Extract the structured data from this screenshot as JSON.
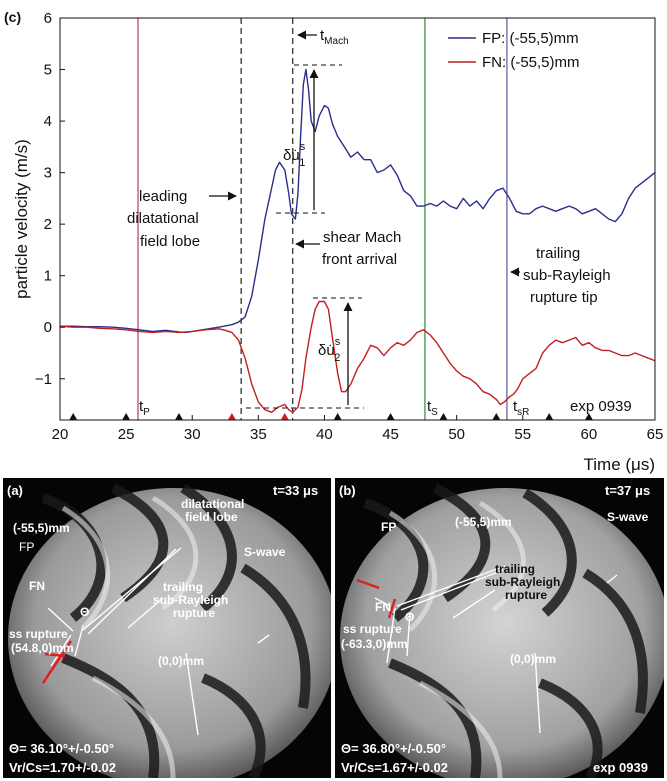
{
  "chart_data": {
    "type": "line",
    "panel_label": "(c)",
    "xlabel": "Time (μs)",
    "ylabel": "particle velocity (m/s)",
    "xlim": [
      20,
      65
    ],
    "ylim": [
      -1.8,
      6
    ],
    "xticks": [
      20,
      25,
      30,
      35,
      40,
      45,
      50,
      55,
      60,
      65
    ],
    "yticks": [
      -1,
      0,
      1,
      2,
      3,
      4,
      5,
      6
    ],
    "ytick_labels": [
      "−1",
      "0",
      "1",
      "2",
      "3",
      "4",
      "5",
      "6"
    ],
    "legend_position": "top-right",
    "series": [
      {
        "name": "FP: (-55,5)mm",
        "color": "#2b2f8c",
        "x": [
          20,
          21,
          22,
          23,
          24,
          25,
          26,
          27,
          28,
          29,
          29.5,
          30,
          31,
          32,
          33,
          33.5,
          34,
          34.5,
          35,
          35.5,
          36,
          36.3,
          36.6,
          37,
          37.3,
          37.5,
          37.8,
          38,
          38.2,
          38.4,
          38.6,
          38.8,
          39,
          39.3,
          39.6,
          40,
          40.3,
          40.6,
          41,
          41.5,
          42,
          42.5,
          43,
          43.5,
          44,
          44.5,
          45,
          45.5,
          46,
          46.5,
          47,
          47.5,
          48,
          48.5,
          49,
          49.5,
          50,
          50.5,
          51,
          51.5,
          52,
          52.5,
          53,
          53.5,
          54,
          54.5,
          55,
          55.5,
          56,
          56.5,
          57,
          57.5,
          58,
          58.5,
          59,
          59.5,
          60,
          60.5,
          61,
          61.5,
          62,
          62.5,
          63,
          63.5,
          64,
          64.5,
          65
        ],
        "y": [
          0.02,
          0.02,
          0.01,
          0.01,
          0.0,
          -0.02,
          -0.05,
          -0.08,
          -0.06,
          -0.09,
          -0.1,
          -0.08,
          -0.04,
          0.0,
          0.05,
          0.1,
          0.2,
          0.6,
          1.3,
          2.1,
          2.7,
          3.05,
          3.2,
          3.05,
          2.6,
          2.2,
          2.1,
          2.6,
          3.7,
          4.7,
          5.0,
          4.6,
          4.0,
          3.8,
          4.1,
          4.3,
          4.25,
          3.95,
          3.7,
          3.5,
          3.3,
          3.4,
          3.25,
          3.25,
          3.0,
          3.05,
          3.15,
          2.95,
          2.65,
          2.55,
          2.35,
          2.35,
          2.4,
          2.35,
          2.45,
          2.35,
          2.3,
          2.5,
          2.35,
          2.45,
          2.3,
          2.5,
          2.65,
          2.7,
          2.5,
          2.25,
          2.2,
          2.2,
          2.3,
          2.35,
          2.3,
          2.25,
          2.3,
          2.35,
          2.3,
          2.2,
          2.25,
          2.3,
          2.2,
          2.1,
          2.05,
          2.2,
          2.5,
          2.7,
          2.8,
          2.9,
          3.0
        ]
      },
      {
        "name": "FN: (-55,5)mm",
        "color": "#c21f1f",
        "x": [
          20,
          21,
          22,
          23,
          24,
          25,
          26,
          27,
          28,
          29,
          30,
          31,
          32,
          32.5,
          33,
          33.5,
          34,
          34.5,
          35,
          35.5,
          36,
          36.5,
          37,
          37.3,
          37.6,
          38,
          38.3,
          38.6,
          39,
          39.3,
          39.6,
          40,
          40.3,
          40.6,
          41,
          41.3,
          41.6,
          42,
          42.5,
          43,
          43.5,
          44,
          44.5,
          45,
          45.5,
          46,
          46.5,
          47,
          47.5,
          48,
          48.5,
          49,
          49.5,
          50,
          50.5,
          51,
          51.5,
          52,
          52.5,
          53,
          53.3,
          53.6,
          54,
          54.3,
          54.6,
          55,
          55.5,
          56,
          56.5,
          57,
          57.5,
          58,
          58.5,
          59,
          59.5,
          60,
          60.5,
          61,
          61.5,
          62,
          62.5,
          63,
          63.5,
          64,
          64.5,
          65
        ],
        "y": [
          0.02,
          0.0,
          0.0,
          -0.02,
          -0.03,
          -0.05,
          -0.08,
          -0.1,
          -0.08,
          -0.1,
          -0.08,
          -0.05,
          -0.03,
          -0.06,
          -0.1,
          -0.25,
          -0.6,
          -1.1,
          -1.45,
          -1.6,
          -1.65,
          -1.55,
          -1.5,
          -1.6,
          -1.65,
          -1.55,
          -1.2,
          -0.6,
          0.0,
          0.35,
          0.5,
          0.5,
          0.35,
          -0.2,
          -0.9,
          -1.25,
          -1.25,
          -1.1,
          -0.8,
          -0.6,
          -0.35,
          -0.4,
          -0.55,
          -0.4,
          -0.3,
          -0.35,
          -0.25,
          -0.1,
          -0.05,
          -0.15,
          -0.3,
          -0.5,
          -0.7,
          -0.85,
          -0.95,
          -1.0,
          -1.1,
          -1.25,
          -1.3,
          -1.4,
          -1.5,
          -1.45,
          -1.35,
          -1.3,
          -1.2,
          -1.0,
          -0.9,
          -0.8,
          -0.5,
          -0.35,
          -0.25,
          -0.3,
          -0.25,
          -0.2,
          -0.35,
          -0.3,
          -0.4,
          -0.45,
          -0.45,
          -0.5,
          -0.55,
          -0.55,
          -0.5,
          -0.55,
          -0.6,
          -0.65
        ]
      }
    ],
    "vertical_lines": [
      {
        "x": 25.9,
        "color": "#b84060",
        "style": "solid",
        "label": "tp"
      },
      {
        "x": 47.6,
        "color": "#2e8b3e",
        "style": "solid",
        "label": "ts"
      },
      {
        "x": 53.8,
        "color": "#5a5a9a",
        "style": "solid",
        "label": "tsR"
      },
      {
        "x": 33.7,
        "color": "#222222",
        "style": "dashed",
        "label": ""
      },
      {
        "x": 37.6,
        "color": "#222222",
        "style": "dashed",
        "label": "tMach"
      }
    ],
    "axis_markers": [
      {
        "x": 21,
        "color": "#111111"
      },
      {
        "x": 25,
        "color": "#111111"
      },
      {
        "x": 29,
        "color": "#111111"
      },
      {
        "x": 33,
        "color": "#d11a1a"
      },
      {
        "x": 37,
        "color": "#d11a1a"
      },
      {
        "x": 41,
        "color": "#111111"
      },
      {
        "x": 45,
        "color": "#111111"
      },
      {
        "x": 49,
        "color": "#111111"
      },
      {
        "x": 53,
        "color": "#111111"
      },
      {
        "x": 57,
        "color": "#111111"
      },
      {
        "x": 60,
        "color": "#111111"
      }
    ],
    "annotations": {
      "t_mach": "t",
      "t_mach_sub": "Mach",
      "delta_u1": "δu̇",
      "delta_u1_sup": "s",
      "delta_u1_sub": "1",
      "delta_u2": "δu̇",
      "delta_u2_sup": "s",
      "delta_u2_sub": "2",
      "leading_lobe": [
        "leading",
        "dilatational",
        "field lobe"
      ],
      "shear_mach": [
        "shear Mach",
        "front arrival"
      ],
      "trailing_tip": [
        "trailing",
        "sub-Rayleigh",
        "rupture tip"
      ],
      "tp": "t",
      "tp_sub": "P",
      "ts": "t",
      "ts_sub": "S",
      "tsr": "t",
      "tsr_sub": "sR",
      "exp": "exp 0939"
    }
  },
  "panel_a": {
    "label": "(a)",
    "time": "t=33 μs",
    "fp": "FP",
    "fn": "FN",
    "coord": "(-55,5)mm",
    "lobe": [
      "dilatational",
      "field lobe"
    ],
    "swave": "S-wave",
    "trailing": [
      "trailing",
      "sub-Rayleigh",
      "rupture"
    ],
    "theta": "Θ",
    "ss_rupture": [
      "ss rupture",
      "(54.8,0)mm"
    ],
    "origin": "(0,0)mm",
    "theta_value": "Θ= 36.10°+/-0.50°",
    "vr_cs": "Vr/Cs=1.70+/-0.02"
  },
  "panel_b": {
    "label": "(b)",
    "time": "t=37 μs",
    "fp": "FP",
    "fn": "FN",
    "coord": "(-55,5)mm",
    "swave": "S-wave",
    "trailing": [
      "trailing",
      "sub-Rayleigh",
      "rupture"
    ],
    "theta": "Θ",
    "ss_rupture": [
      "ss rupture",
      "(-63.3,0)mm"
    ],
    "origin": "(0,0)mm",
    "theta_value": "Θ= 36.80°+/-0.50°",
    "vr_cs": "Vr/Cs=1.67+/-0.02",
    "exp": "exp 0939"
  }
}
